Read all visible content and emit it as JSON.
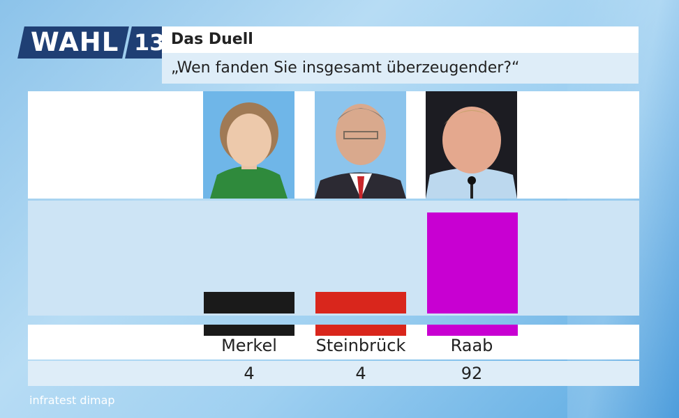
{
  "logo": {
    "word": "WAHL",
    "number": "13"
  },
  "header": {
    "title": "Das Duell",
    "subtitle": "„Wen fanden Sie insgesamt überzeugender?“"
  },
  "source": "infratest dimap",
  "chart_data": {
    "type": "bar",
    "title": "„Wen fanden Sie insgesamt überzeugender?“",
    "categories": [
      "Merkel",
      "Steinbrück",
      "Raab"
    ],
    "values": [
      4,
      4,
      92
    ],
    "colors": [
      "#1a1a1a",
      "#d9261c",
      "#c800d2"
    ],
    "ylim": [
      0,
      100
    ]
  }
}
